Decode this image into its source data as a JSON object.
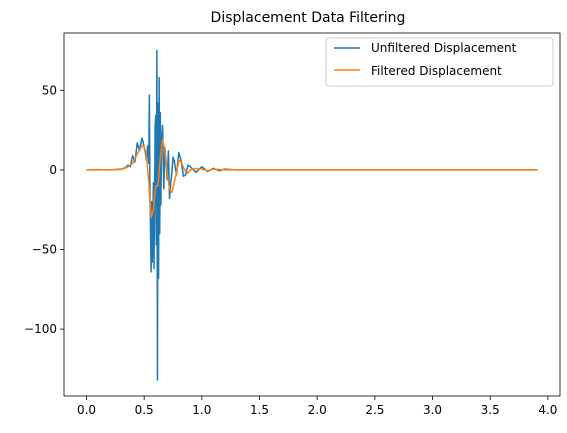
{
  "chart_data": {
    "type": "line",
    "title": "Displacement Data Filtering",
    "xlabel": "",
    "ylabel": "",
    "xlim": [
      -0.195,
      4.105
    ],
    "ylim": [
      -142,
      86
    ],
    "xticks": [
      "0.0",
      "0.5",
      "1.0",
      "1.5",
      "2.0",
      "2.5",
      "3.0",
      "3.5",
      "4.0"
    ],
    "yticks": [
      "50",
      "0",
      "−50",
      "−100"
    ],
    "grid": false,
    "legend_position": "upper right",
    "series": [
      {
        "name": "Unfiltered Displacement",
        "color": "#1f77b4",
        "x": [
          0,
          0.1,
          0.2,
          0.3,
          0.34,
          0.36,
          0.38,
          0.4,
          0.42,
          0.44,
          0.46,
          0.48,
          0.49,
          0.5,
          0.51,
          0.52,
          0.53,
          0.54,
          0.545,
          0.55,
          0.555,
          0.56,
          0.565,
          0.57,
          0.575,
          0.58,
          0.585,
          0.59,
          0.595,
          0.6,
          0.605,
          0.61,
          0.615,
          0.62,
          0.625,
          0.63,
          0.635,
          0.64,
          0.645,
          0.65,
          0.66,
          0.67,
          0.68,
          0.69,
          0.7,
          0.71,
          0.72,
          0.73,
          0.74,
          0.75,
          0.76,
          0.78,
          0.8,
          0.82,
          0.84,
          0.86,
          0.88,
          0.9,
          0.95,
          1.0,
          1.05,
          1.1,
          1.15,
          1.2,
          1.3,
          1.5,
          2.0,
          2.5,
          3.0,
          3.5,
          3.91
        ],
        "y": [
          0,
          0.2,
          0,
          0.5,
          1.5,
          3,
          2,
          9,
          5,
          17,
          12,
          20,
          18,
          14,
          11,
          6,
          15,
          4,
          47,
          -12,
          -38,
          -64,
          -20,
          -58,
          -35,
          -8,
          -62,
          -22,
          28,
          34,
          -47,
          75,
          -132,
          42,
          -68,
          58,
          -40,
          36,
          -22,
          18,
          28,
          -12,
          14,
          4,
          -6,
          12,
          -18,
          -8,
          -2,
          8,
          6,
          -3,
          11,
          6,
          -4,
          -3,
          3,
          2,
          -1.5,
          2,
          -1,
          1,
          -0.5,
          0.5,
          0,
          0,
          0,
          0,
          0,
          0,
          0
        ]
      },
      {
        "name": "Filtered Displacement",
        "color": "#ff7f0e",
        "x": [
          0,
          0.2,
          0.3,
          0.35,
          0.4,
          0.44,
          0.48,
          0.5,
          0.52,
          0.54,
          0.56,
          0.58,
          0.6,
          0.62,
          0.64,
          0.66,
          0.68,
          0.7,
          0.72,
          0.74,
          0.76,
          0.78,
          0.8,
          0.82,
          0.85,
          0.88,
          0.9,
          0.95,
          1.0,
          1.05,
          1.1,
          1.2,
          1.3,
          1.5,
          2.0,
          2.5,
          3.0,
          3.5,
          3.91
        ],
        "y": [
          0,
          0,
          0.3,
          1.5,
          4,
          10,
          15,
          15,
          9,
          -8,
          -30,
          -25,
          -10,
          -10,
          8,
          19,
          12,
          -2,
          -12,
          -14,
          -8,
          -2,
          6,
          5,
          0,
          -2,
          0,
          1,
          0.5,
          -0.5,
          0.5,
          0,
          0,
          0,
          0,
          0,
          0,
          0,
          0
        ]
      }
    ]
  }
}
